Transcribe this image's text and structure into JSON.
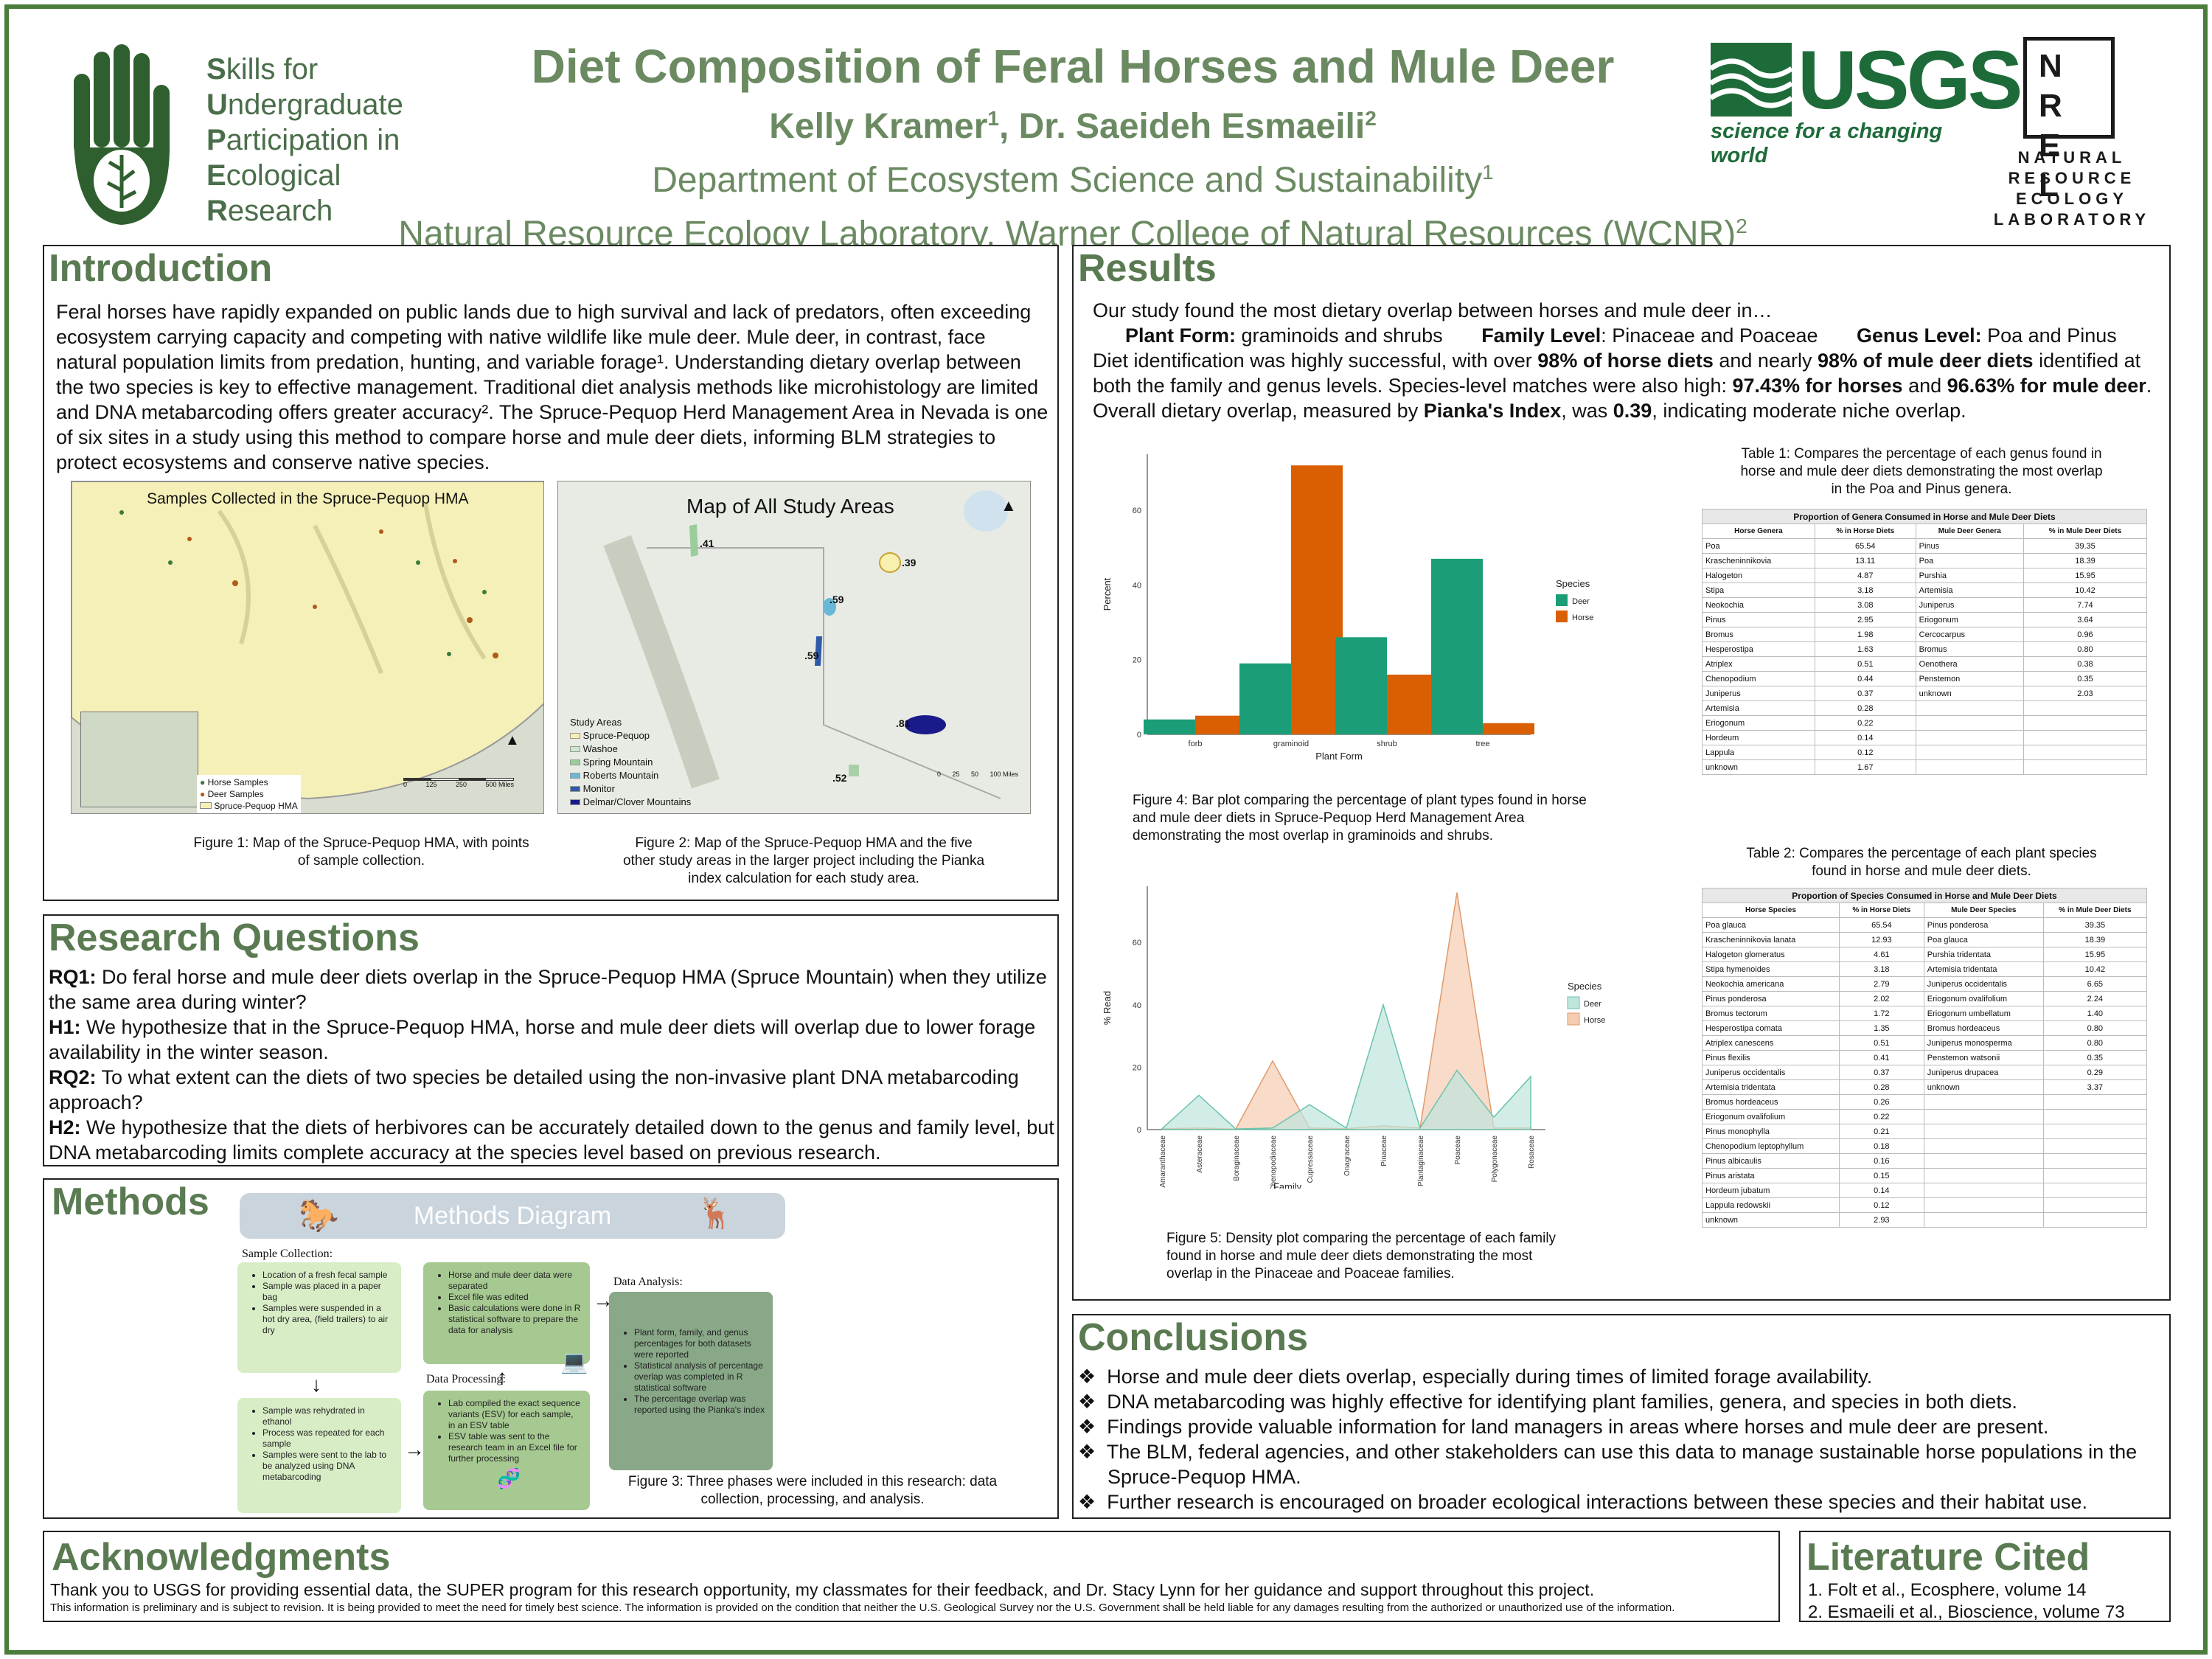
{
  "header": {
    "logo_lines": [
      "kills for",
      "ndergraduate",
      "articipation in",
      "cological",
      "esearch"
    ],
    "logo_initials": [
      "S",
      "U",
      "P",
      "E",
      "R"
    ],
    "title": "Diet Composition of Feral Horses and Mule Deer",
    "authors_1": "Kelly Kramer",
    "authors_sup1": "1",
    "authors_2": ", Dr. Saeideh Esmaeili",
    "authors_sup2": "2",
    "affil_1": "Department of Ecosystem Science and Sustainability",
    "affil_1_sup": "1",
    "affil_2": "Natural Resource Ecology Laboratory, Warner College of Natural Resources (WCNR)",
    "affil_2_sup": "2",
    "usgs_text": "USGS",
    "usgs_tagline": "science for a changing world",
    "nrel_letters": [
      "N",
      "R",
      "E",
      "L"
    ],
    "nrel_text": [
      "NATURAL",
      "RESOURCE",
      "ECOLOGY",
      "LABORATORY"
    ]
  },
  "colors": {
    "accent": "#5a7a52",
    "deer": "#1b9e77",
    "horse": "#d95f02",
    "usgs": "#1e6b3a",
    "frame": "#4a7c3b"
  },
  "intro": {
    "title": "Introduction",
    "text": "Feral horses have rapidly expanded on public lands due to high survival and lack of predators, often exceeding ecosystem carrying capacity and competing with native wildlife like mule deer. Mule deer, in contrast, face natural population limits from predation, hunting, and variable forage¹. Understanding dietary overlap between the two species is key to effective management. Traditional diet analysis methods like microhistology are limited and DNA metabarcoding offers greater accuracy². The Spruce-Pequop Herd Management Area in Nevada is one of six sites in a study using this method to compare horse and mule deer diets, informing BLM strategies to protect ecosystems and conserve native species.",
    "map1_title": "Samples Collected in the Spruce-Pequop HMA",
    "map1_legend": [
      "Horse Samples",
      "Deer Samples",
      "Spruce-Pequop HMA"
    ],
    "map1_scale": [
      "0",
      "125",
      "250",
      "500 Miles"
    ],
    "fig1_caption": "Figure 1: Map of the Spruce-Pequop HMA, with points of sample collection.",
    "map2_title": "Map of All Study Areas",
    "map2_values": [
      ".41",
      ".39",
      ".59",
      ".59",
      ".81",
      ".52"
    ],
    "map2_legend_title": "Study Areas",
    "map2_legend": [
      "Spruce-Pequop",
      "Washoe",
      "Spring Mountain",
      "Roberts Mountain",
      "Monitor",
      "Delmar/Clover Mountains"
    ],
    "map2_scale": [
      "0",
      "25",
      "50",
      "100 Miles"
    ],
    "fig2_caption": "Figure 2: Map of the Spruce-Pequop HMA and the five other study areas in the larger project including the Pianka index calculation for each study area."
  },
  "rq": {
    "title": "Research Questions",
    "rq1_label": "RQ1:",
    "rq1": " Do feral horse and mule deer diets overlap in the Spruce-Pequop HMA (Spruce Mountain) when they utilize the same area during winter?",
    "h1_label": "H1:",
    "h1": " We hypothesize that in the Spruce-Pequop HMA, horse and mule deer diets will overlap due to lower forage availability in the winter season.",
    "rq2_label": "RQ2:",
    "rq2": " To what extent can the diets of two species be detailed using the non-invasive plant DNA metabarcoding approach?",
    "h2_label": "H2:",
    "h2": " We hypothesize that the diets of herbivores can be accurately detailed down to the genus and family level, but DNA metabarcoding limits complete accuracy at the species level based on previous research."
  },
  "methods": {
    "title": "Methods",
    "diagram_title": "Methods Diagram",
    "sample_collection": "Sample Collection:",
    "data_processing": "Data Processing:",
    "data_analysis": "Data Analysis:",
    "box1": [
      "Location of a fresh fecal sample",
      "Sample was placed in a paper bag",
      "Samples were suspended in a hot dry area, (field trailers) to air dry"
    ],
    "box2": [
      "Sample was rehydrated in ethanol",
      "Process was repeated for each sample",
      "Samples were sent to the lab to be analyzed using DNA metabarcoding"
    ],
    "box3": [
      "Horse and mule deer data were separated",
      "Excel file was edited",
      "Basic calculations were done in R statistical software to prepare the data for analysis"
    ],
    "box4": [
      "Lab compiled the exact sequence variants (ESV) for each sample, in an ESV table",
      "ESV table was sent to the research team in an Excel file for further processing"
    ],
    "box5": [
      "Plant form, family, and genus percentages for both datasets were reported",
      "Statistical analysis of percentage overlap was completed in R statistical software",
      "The percentage overlap was reported using the Pianka's index"
    ],
    "fig3_caption": "Figure 3: Three phases were included in this research: data collection, processing, and analysis."
  },
  "results": {
    "title": "Results",
    "intro": "Our study found the most dietary overlap between horses and mule deer in…",
    "plant_form_label": "Plant Form:",
    "plant_form": " graminoids and shrubs",
    "family_label": "Family Level",
    "family": ": Pinaceae and Poaceae",
    "genus_label": "Genus Level:",
    "genus": " Poa and Pinus",
    "p1": "Diet identification was highly successful, with over ",
    "p1b": "98% of horse diets",
    "p1c": " and nearly ",
    "p1d": "98% of mule deer diets",
    "p1e": " identified at both the family and genus levels. Species-level matches were also high: ",
    "p1f": "97.43% for horses",
    "p1g": " and ",
    "p1h": "96.63% for mule deer",
    "p1i": ". Overall dietary overlap, measured by ",
    "p1j": "Pianka's Index",
    "p1k": ", was ",
    "p1l": "0.39",
    "p1m": ", indicating moderate niche overlap.",
    "fig4_caption": "Figure 4: Bar plot comparing the percentage of plant types found in horse and mule deer diets in Spruce-Pequop Herd Management Area demonstrating the most overlap in graminoids and shrubs.",
    "fig5_caption": "Figure 5: Density plot comparing the percentage of each family found in horse and mule deer diets demonstrating the most overlap in the Pinaceae and Poaceae families.",
    "table1_caption": "Table 1: Compares the percentage of each genus found in horse and mule deer diets demonstrating the most overlap in the Poa and Pinus genera.",
    "table2_caption": "Table 2: Compares the percentage of each plant species found in horse and mule deer diets.",
    "table1": {
      "title": "Proportion of Genera Consumed in Horse and Mule Deer Diets",
      "headers": [
        "Horse Genera",
        "% in Horse Diets",
        "Mule Deer Genera",
        "% in Mule Deer Diets"
      ],
      "rows": [
        [
          "Poa",
          "65.54",
          "Pinus",
          "39.35"
        ],
        [
          "Krascheninnikovia",
          "13.11",
          "Poa",
          "18.39"
        ],
        [
          "Halogeton",
          "4.87",
          "Purshia",
          "15.95"
        ],
        [
          "Stipa",
          "3.18",
          "Artemisia",
          "10.42"
        ],
        [
          "Neokochia",
          "3.08",
          "Juniperus",
          "7.74"
        ],
        [
          "Pinus",
          "2.95",
          "Eriogonum",
          "3.64"
        ],
        [
          "Bromus",
          "1.98",
          "Cercocarpus",
          "0.96"
        ],
        [
          "Hesperostipa",
          "1.63",
          "Bromus",
          "0.80"
        ],
        [
          "Atriplex",
          "0.51",
          "Oenothera",
          "0.38"
        ],
        [
          "Chenopodium",
          "0.44",
          "Penstemon",
          "0.35"
        ],
        [
          "Juniperus",
          "0.37",
          "unknown",
          "2.03"
        ],
        [
          "Artemisia",
          "0.28",
          "",
          ""
        ],
        [
          "Eriogonum",
          "0.22",
          "",
          ""
        ],
        [
          "Hordeum",
          "0.14",
          "",
          ""
        ],
        [
          "Lappula",
          "0.12",
          "",
          ""
        ],
        [
          "unknown",
          "1.67",
          "",
          ""
        ]
      ]
    },
    "table2": {
      "title": "Proportion of Species Consumed in Horse and Mule Deer Diets",
      "headers": [
        "Horse Species",
        "% in Horse Diets",
        "Mule Deer Species",
        "% in Mule Deer Diets"
      ],
      "rows": [
        [
          "Poa glauca",
          "65.54",
          "Pinus ponderosa",
          "39.35"
        ],
        [
          "Krascheninnikovia lanata",
          "12.93",
          "Poa glauca",
          "18.39"
        ],
        [
          "Halogeton glomeratus",
          "4.61",
          "Purshia tridentata",
          "15.95"
        ],
        [
          "Stipa hymenoides",
          "3.18",
          "Artemisia tridentata",
          "10.42"
        ],
        [
          "Neokochia americana",
          "2.79",
          "Juniperus occidentalis",
          "6.65"
        ],
        [
          "Pinus ponderosa",
          "2.02",
          "Eriogonum ovalifolium",
          "2.24"
        ],
        [
          "Bromus tectorum",
          "1.72",
          "Eriogonum umbellatum",
          "1.40"
        ],
        [
          "Hesperostipa comata",
          "1.35",
          "Bromus hordeaceus",
          "0.80"
        ],
        [
          "Atriplex canescens",
          "0.51",
          "Juniperus monosperma",
          "0.80"
        ],
        [
          "Pinus flexilis",
          "0.41",
          "Penstemon watsonii",
          "0.35"
        ],
        [
          "Juniperus occidentalis",
          "0.37",
          "Juniperus drupacea",
          "0.29"
        ],
        [
          "Artemisia tridentata",
          "0.28",
          "unknown",
          "3.37"
        ],
        [
          "Bromus hordeaceus",
          "0.26",
          "",
          ""
        ],
        [
          "Eriogonum ovalifolium",
          "0.22",
          "",
          ""
        ],
        [
          "Pinus monophylla",
          "0.21",
          "",
          ""
        ],
        [
          "Chenopodium leptophyllum",
          "0.18",
          "",
          ""
        ],
        [
          "Pinus albicaulis",
          "0.16",
          "",
          ""
        ],
        [
          "Pinus aristata",
          "0.15",
          "",
          ""
        ],
        [
          "Hordeum jubatum",
          "0.14",
          "",
          ""
        ],
        [
          "Lappula redowskii",
          "0.12",
          "",
          ""
        ],
        [
          "unknown",
          "2.93",
          "",
          ""
        ]
      ]
    }
  },
  "chart_data": [
    {
      "type": "bar",
      "categories": [
        "forb",
        "graminoid",
        "shrub",
        "tree"
      ],
      "series": [
        {
          "name": "Deer",
          "values": [
            4,
            19,
            26,
            47
          ]
        },
        {
          "name": "Horse",
          "values": [
            5,
            72,
            16,
            3
          ]
        }
      ],
      "xlabel": "Plant Form",
      "ylabel": "Percent",
      "yticks": [
        0,
        20,
        40,
        60
      ],
      "ylim": [
        0,
        75
      ],
      "legend_title": "Species",
      "legend_placement": "right"
    },
    {
      "type": "area",
      "categories": [
        "Amaranthaceae",
        "Asteraceae",
        "Boraginaceae",
        "Chenopodiaceae",
        "Cupressaceae",
        "Onagraceae",
        "Pinaceae",
        "Plantaginaceae",
        "Poaceae",
        "Polygonaceae",
        "Rosaceae"
      ],
      "series": [
        {
          "name": "Deer",
          "values": [
            0.3,
            11,
            0.2,
            0.5,
            8,
            0.5,
            40,
            0.5,
            19,
            4,
            17
          ]
        },
        {
          "name": "Horse",
          "values": [
            0.3,
            0.5,
            0.2,
            22,
            0.5,
            0.3,
            1.2,
            0.5,
            76,
            0.5,
            0.5
          ]
        }
      ],
      "xlabel": "Family",
      "ylabel": "% Read",
      "yticks": [
        0,
        20,
        40,
        60
      ],
      "ylim": [
        0,
        78
      ],
      "legend_title": "Species",
      "legend_placement": "right"
    }
  ],
  "conclusions": {
    "title": "Conclusions",
    "items": [
      "Horse and mule deer diets overlap, especially during times of limited forage availability.",
      "DNA metabarcoding was highly effective for identifying plant families, genera, and species in both diets.",
      "Findings provide valuable information for land managers in areas where horses and mule deer are present.",
      "The BLM, federal agencies, and other stakeholders can use this data to manage sustainable horse populations in the",
      "Spruce-Pequop HMA.",
      "Further research is encouraged on broader ecological interactions between these species and their habitat use."
    ]
  },
  "ack": {
    "title": "Acknowledgments",
    "text": "Thank you to USGS for providing essential data, the SUPER program for this research opportunity, my classmates for their feedback, and Dr. Stacy Lynn for her guidance and support throughout this project.",
    "disclaimer": "This information is preliminary and is subject to revision. It is being provided to meet the need for timely best science. The information is provided on the condition that neither the U.S. Geological Survey nor the U.S. Government shall be held liable for any damages resulting from the authorized or unauthorized use of the information."
  },
  "lit": {
    "title": "Literature Cited",
    "items": [
      "1.  Folt et al., Ecosphere, volume 14",
      "2.  Esmaeili et al., Bioscience, volume 73"
    ]
  }
}
